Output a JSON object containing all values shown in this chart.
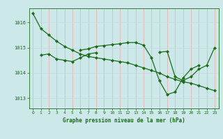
{
  "title": "Graphe pression niveau de la mer (hPa)",
  "bg_color": "#cce8e8",
  "grid_color_v": "#e8a8a8",
  "grid_color_h": "#c8d8d8",
  "line_color": "#1a6b1a",
  "marker": "D",
  "markersize": 2.2,
  "linewidth": 0.9,
  "xlim": [
    -0.5,
    23.5
  ],
  "ylim": [
    1012.6,
    1016.55
  ],
  "yticks": [
    1013,
    1014,
    1015,
    1016
  ],
  "xticks": [
    0,
    1,
    2,
    3,
    4,
    5,
    6,
    7,
    8,
    9,
    10,
    11,
    12,
    13,
    14,
    15,
    16,
    17,
    18,
    19,
    20,
    21,
    22,
    23
  ],
  "series": [
    [
      1016.35,
      1015.75,
      1015.5,
      1015.25,
      1015.05,
      1014.9,
      1014.75,
      1014.65,
      1014.6,
      1014.55,
      1014.5,
      1014.45,
      1014.4,
      1014.3,
      1014.2,
      1014.1,
      1014.0,
      1013.85,
      1013.75,
      1013.65,
      1013.6,
      1013.5,
      1013.4,
      1013.3
    ],
    [
      null,
      1014.7,
      1014.75,
      1014.55,
      1014.5,
      1014.45,
      1014.6,
      1014.75,
      1014.8,
      null,
      null,
      null,
      null,
      null,
      null,
      null,
      1014.82,
      1014.85,
      1013.85,
      1013.7,
      1013.85,
      1014.15,
      1014.3,
      1015.0
    ],
    [
      null,
      null,
      null,
      null,
      null,
      null,
      1014.9,
      1014.95,
      1015.05,
      1015.08,
      1015.12,
      1015.15,
      1015.2,
      1015.2,
      1015.1,
      1014.6,
      1013.7,
      1013.15,
      1013.25,
      1013.8,
      1014.15,
      1014.3,
      null,
      null
    ]
  ]
}
